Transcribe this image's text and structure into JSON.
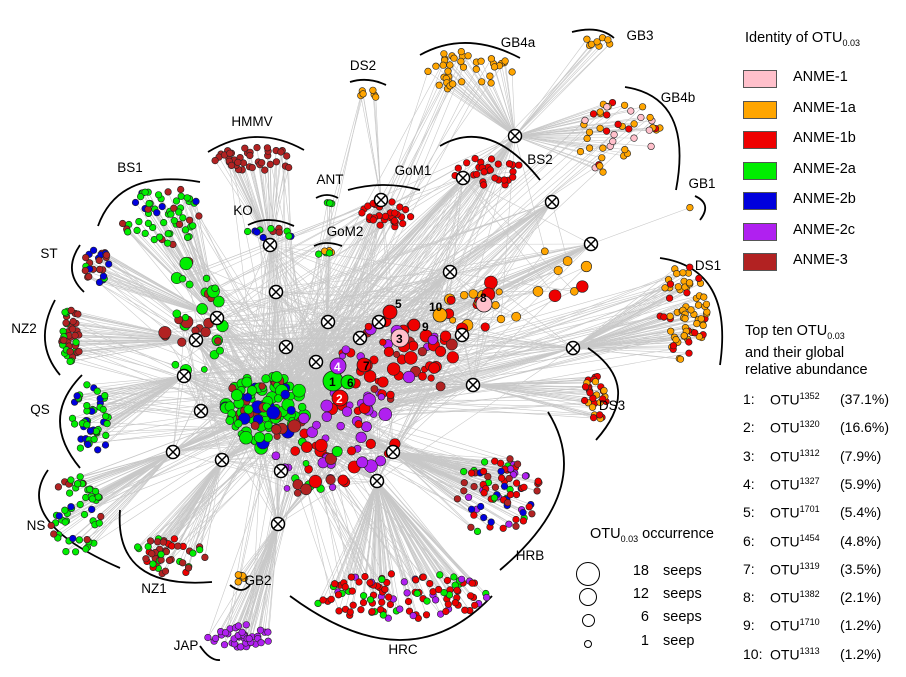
{
  "colors": {
    "ANME-1": "#ffc0cb",
    "ANME-1a": "#ffa500",
    "ANME-1b": "#ee0000",
    "ANME-2a": "#00ee00",
    "ANME-2b": "#0000dd",
    "ANME-2c": "#b020f0",
    "ANME-3": "#b22222",
    "edge": "#c8c8c8"
  },
  "legend": {
    "title_main": "Identity of OTU",
    "title_sub": "0.03",
    "items": [
      {
        "label": "ANME-1",
        "color": "#ffc0cb"
      },
      {
        "label": "ANME-1a",
        "color": "#ffa500"
      },
      {
        "label": "ANME-1b",
        "color": "#ee0000"
      },
      {
        "label": "ANME-2a",
        "color": "#00ee00"
      },
      {
        "label": "ANME-2b",
        "color": "#0000dd"
      },
      {
        "label": "ANME-2c",
        "color": "#b020f0"
      },
      {
        "label": "ANME-3",
        "color": "#b22222"
      }
    ]
  },
  "top_ten": {
    "title_line1": "Top ten OTU",
    "title_sub": "0.03",
    "title_line2": "and their global",
    "title_line3": "relative abundance",
    "rows": [
      {
        "rank": "1:",
        "otu": "OTU",
        "id": "1352",
        "pct": "(37.1%)"
      },
      {
        "rank": "2:",
        "otu": "OTU",
        "id": "1320",
        "pct": "(16.6%)"
      },
      {
        "rank": "3:",
        "otu": "OTU",
        "id": "1312",
        "pct": "(7.9%)"
      },
      {
        "rank": "4:",
        "otu": "OTU",
        "id": "1327",
        "pct": "(5.9%)"
      },
      {
        "rank": "5:",
        "otu": "OTU",
        "id": "1701",
        "pct": "(5.4%)"
      },
      {
        "rank": "6:",
        "otu": "OTU",
        "id": "1454",
        "pct": "(4.8%)"
      },
      {
        "rank": "7:",
        "otu": "OTU",
        "id": "1319",
        "pct": "(3.5%)"
      },
      {
        "rank": "8:",
        "otu": "OTU",
        "id": "1382",
        "pct": "(2.1%)"
      },
      {
        "rank": "9:",
        "otu": "OTU",
        "id": "1710",
        "pct": "(1.2%)"
      },
      {
        "rank": "10:",
        "otu": "OTU",
        "id": "1313",
        "pct": "(1.2%)"
      }
    ]
  },
  "occurrence": {
    "title_main": "OTU",
    "title_sub": "0.03",
    "title_rest": " occurrence",
    "rows": [
      {
        "count": "18",
        "unit": "seeps"
      },
      {
        "count": "12",
        "unit": "seeps"
      },
      {
        "count": "6",
        "unit": "seeps"
      },
      {
        "count": "1",
        "unit": "seep"
      }
    ]
  },
  "sites": [
    {
      "label": "GB4a",
      "type": "ANME-1a"
    },
    {
      "label": "GB3",
      "type": "ANME-1a"
    },
    {
      "label": "DS2",
      "type": "ANME-1a"
    },
    {
      "label": "GB4b",
      "type": "ANME-1a"
    },
    {
      "label": "HMMV",
      "type": "ANME-3"
    },
    {
      "label": "BS2",
      "type": "ANME-1b"
    },
    {
      "label": "GoM1",
      "type": "ANME-1b"
    },
    {
      "label": "ANT",
      "type": "ANME-2a"
    },
    {
      "label": "BS1",
      "type": "ANME-2a"
    },
    {
      "label": "GB1",
      "type": "ANME-1a"
    },
    {
      "label": "KO",
      "type": "ANME-3"
    },
    {
      "label": "GoM2",
      "type": "ANME-2a"
    },
    {
      "label": "DS1",
      "type": "ANME-1a"
    },
    {
      "label": "ST",
      "type": "ANME-2b"
    },
    {
      "label": "NZ2",
      "type": "ANME-3"
    },
    {
      "label": "QS",
      "type": "ANME-2a"
    },
    {
      "label": "DS3",
      "type": "ANME-1b"
    },
    {
      "label": "NS",
      "type": "ANME-2a"
    },
    {
      "label": "HRB",
      "type": "ANME-1b"
    },
    {
      "label": "NZ1",
      "type": "ANME-3"
    },
    {
      "label": "GB2",
      "type": "ANME-1a"
    },
    {
      "label": "JAP",
      "type": "ANME-2c"
    },
    {
      "label": "HRC",
      "type": "ANME-1b"
    }
  ],
  "top_otu_markers": [
    {
      "num": "1",
      "type": "ANME-2a"
    },
    {
      "num": "2",
      "type": "ANME-1b"
    },
    {
      "num": "3",
      "type": "ANME-1"
    },
    {
      "num": "4",
      "type": "ANME-2c"
    },
    {
      "num": "5",
      "type": "ANME-1b"
    },
    {
      "num": "6",
      "type": "ANME-2a"
    },
    {
      "num": "7",
      "type": "ANME-1b"
    },
    {
      "num": "8",
      "type": "ANME-1"
    },
    {
      "num": "9",
      "type": "ANME-1b"
    },
    {
      "num": "10",
      "type": "ANME-1a"
    }
  ]
}
